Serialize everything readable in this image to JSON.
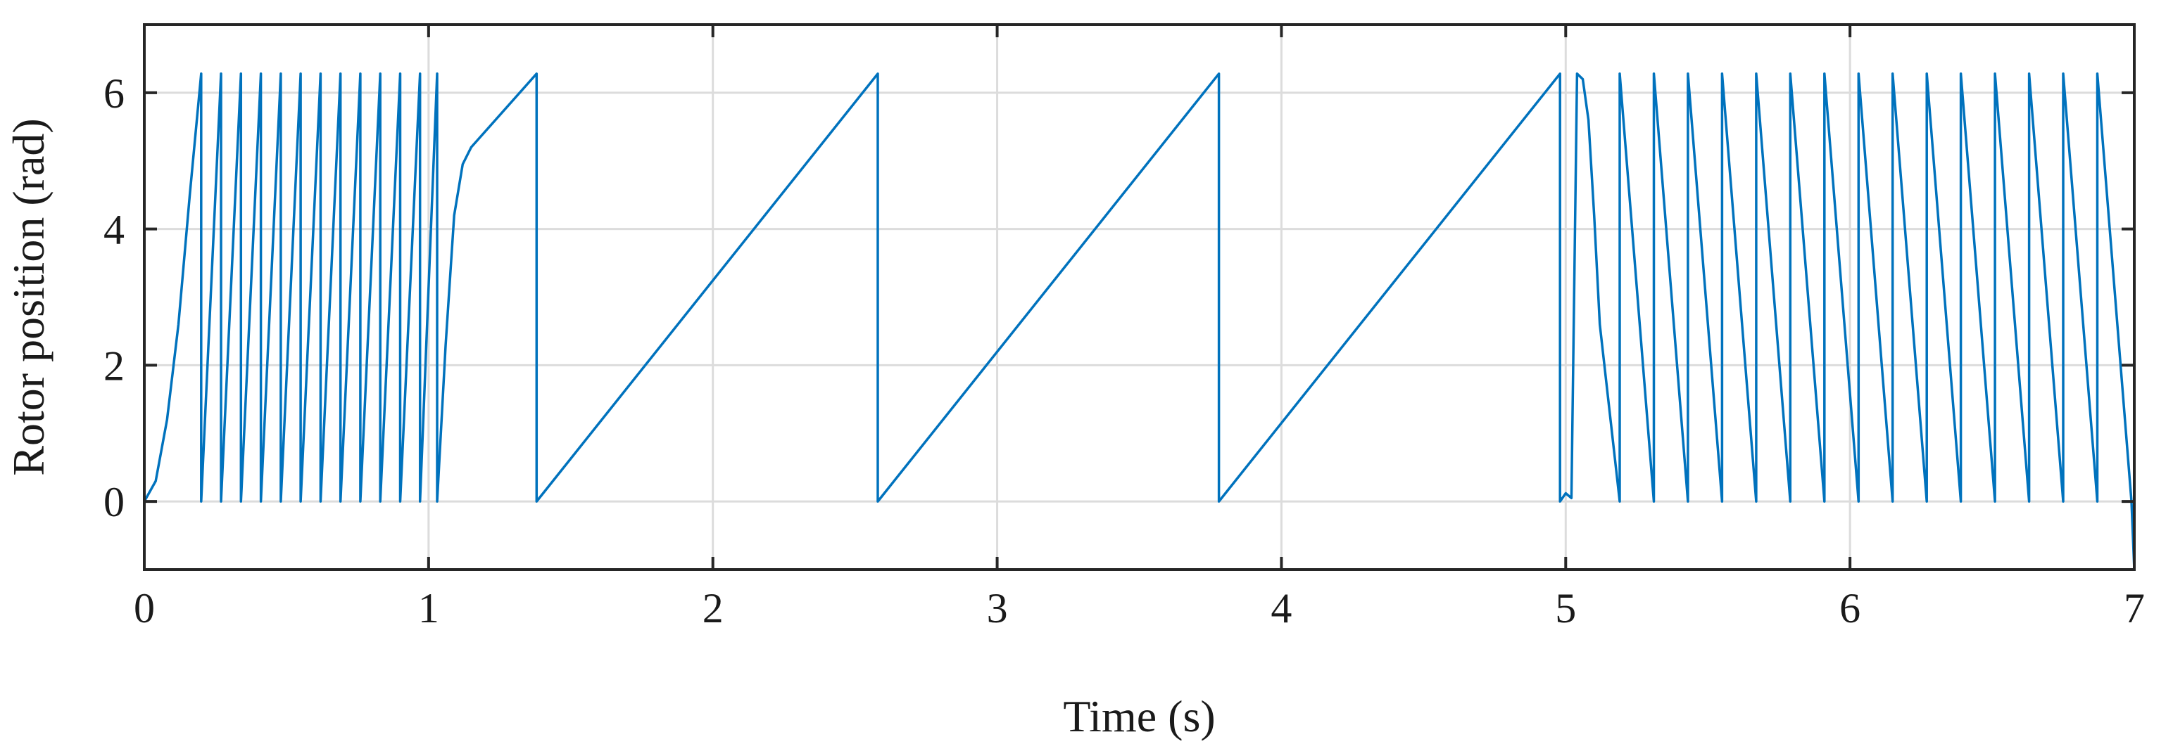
{
  "chart_data": {
    "type": "line",
    "title": "",
    "xlabel": "Time (s)",
    "ylabel": "Rotor position (rad)",
    "xlim": [
      0,
      7
    ],
    "ylim": [
      -1,
      7
    ],
    "xticks": [
      0,
      1,
      2,
      3,
      4,
      5,
      6,
      7
    ],
    "yticks": [
      0,
      2,
      4,
      6
    ],
    "grid": true,
    "legend": "none",
    "series": [
      {
        "color": "#0072bd",
        "x": [
          0,
          0.04,
          0.08,
          0.12,
          0.16,
          0.2,
          0.2,
          0.27,
          0.27,
          0.34,
          0.34,
          0.41,
          0.41,
          0.48,
          0.48,
          0.55,
          0.55,
          0.62,
          0.62,
          0.69,
          0.69,
          0.76,
          0.76,
          0.83,
          0.83,
          0.9,
          0.9,
          0.97,
          0.97,
          1.03,
          1.03,
          1.06,
          1.09,
          1.12,
          1.15,
          1.38,
          1.38,
          2.58,
          2.58,
          3.78,
          3.78,
          4.98,
          4.98,
          5.0,
          5.02,
          5.04,
          5.06,
          5.08,
          5.1,
          5.12,
          5.19,
          5.19,
          5.31,
          5.31,
          5.43,
          5.43,
          5.55,
          5.55,
          5.67,
          5.67,
          5.79,
          5.79,
          5.91,
          5.91,
          6.03,
          6.03,
          6.15,
          6.15,
          6.27,
          6.27,
          6.39,
          6.39,
          6.51,
          6.51,
          6.63,
          6.63,
          6.75,
          6.75,
          6.87,
          6.87,
          6.99,
          7.0
        ],
        "y": [
          0,
          0.3,
          1.2,
          2.6,
          4.5,
          6.28,
          0,
          6.28,
          0,
          6.28,
          0,
          6.28,
          0,
          6.28,
          0,
          6.28,
          0,
          6.28,
          0,
          6.28,
          0,
          6.28,
          0,
          6.28,
          0,
          6.28,
          0,
          6.28,
          0,
          6.28,
          0,
          2.3,
          4.2,
          4.95,
          5.2,
          6.28,
          0,
          6.28,
          0,
          6.28,
          0,
          6.28,
          0,
          0.12,
          0.05,
          6.28,
          6.2,
          5.6,
          4.2,
          2.6,
          0,
          6.28,
          0,
          6.28,
          0,
          6.28,
          0,
          6.28,
          0,
          6.28,
          0,
          6.28,
          0,
          6.28,
          0,
          6.28,
          0,
          6.28,
          0,
          6.28,
          0,
          6.28,
          0,
          6.28,
          0,
          6.28,
          0,
          6.28,
          0,
          6.28,
          0,
          -1
        ]
      }
    ]
  }
}
